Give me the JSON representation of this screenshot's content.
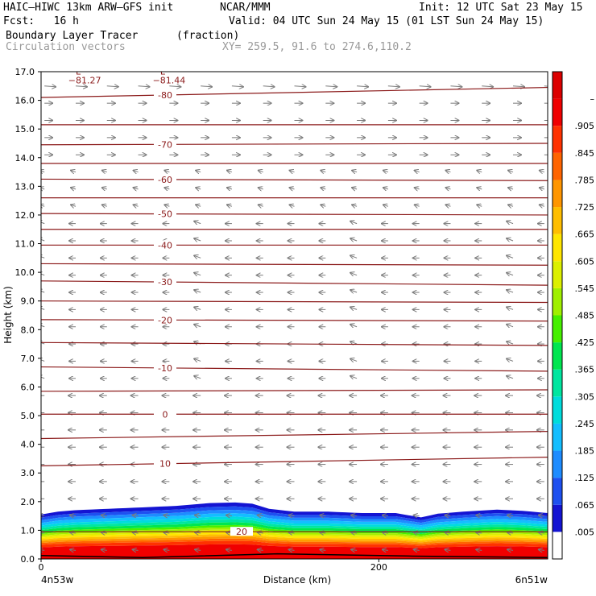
{
  "header": {
    "model": "HAIC–HIWC 13km ARW–GFS init",
    "org": "NCAR/MMM",
    "init": "Init: 12 UTC Sat 23 May 15",
    "fcst": "Fcst:   16 h",
    "valid": "Valid: 04 UTC Sun 24 May 15 (01 LST Sun 24 May 15)",
    "field": "Boundary Layer Tracer",
    "field_units": "(fraction)",
    "vectors_label": "Circulation vectors",
    "xy_label": "XY= 259.5, 91.6 to 274.6,110.2"
  },
  "colors": {
    "contour": "#8b1a1a",
    "vector": "#7a7a7a",
    "axis": "#000000"
  },
  "chart_data": {
    "type": "heatmap",
    "xlabel": "Distance (km)",
    "ylabel": "Height (km)",
    "xlim": [
      0,
      300
    ],
    "ylim": [
      0,
      17
    ],
    "x_ticks": [
      {
        "value": 0,
        "label": "0"
      },
      {
        "value": 200,
        "label": "200"
      }
    ],
    "x_endpoints": {
      "left": "4n53w",
      "right": "6n51w"
    },
    "y_ticks": [
      0.0,
      1.0,
      2.0,
      3.0,
      4.0,
      5.0,
      6.0,
      7.0,
      8.0,
      9.0,
      10.0,
      11.0,
      12.0,
      13.0,
      14.0,
      15.0,
      16.0,
      17.0
    ],
    "y_tick_labels": [
      "0.0",
      "1.0",
      "2.0",
      "3.0",
      "4.0",
      "5.0",
      "6.0",
      "7.0",
      "8.0",
      "9.0",
      "10.0",
      "11.0",
      "12.0",
      "13.0",
      "14.0",
      "15.0",
      "16.0",
      "17.0"
    ],
    "colorbar": {
      "labels": [
        ".005",
        ".065",
        ".125",
        ".185",
        ".245",
        ".305",
        ".365",
        ".425",
        ".485",
        ".545",
        ".605",
        ".665",
        ".725",
        ".785",
        ".845",
        ".905",
        "–"
      ],
      "colors": [
        "#ffffff",
        "#1414d2",
        "#1e50f0",
        "#1e8cff",
        "#14beff",
        "#00dcdc",
        "#00e6a0",
        "#00e650",
        "#46f000",
        "#a0f000",
        "#dcf000",
        "#ffe600",
        "#ffbe00",
        "#ff9600",
        "#ff6400",
        "#ff3200",
        "#f00000",
        "#dc0000"
      ]
    },
    "boundary_layer": {
      "x": [
        0,
        10,
        20,
        40,
        60,
        80,
        100,
        115,
        125,
        135,
        150,
        170,
        190,
        210,
        225,
        235,
        250,
        270,
        285,
        300
      ],
      "top": [
        1.55,
        1.65,
        1.7,
        1.75,
        1.8,
        1.85,
        1.95,
        1.97,
        1.93,
        1.75,
        1.65,
        1.65,
        1.6,
        1.6,
        1.45,
        1.58,
        1.65,
        1.72,
        1.68,
        1.6
      ]
    },
    "temperature_contours": [
      {
        "label": "20",
        "y_left": 0.95,
        "y_right": 0.95
      },
      {
        "label": "10",
        "y_left": 3.25,
        "y_right": 3.55
      },
      {
        "label": "",
        "y_left": 4.2,
        "y_right": 4.45
      },
      {
        "label": "0",
        "y_left": 5.05,
        "y_right": 5.05
      },
      {
        "label": "",
        "y_left": 5.85,
        "y_right": 5.9
      },
      {
        "label": "-10",
        "y_left": 6.7,
        "y_right": 6.55
      },
      {
        "label": "",
        "y_left": 7.55,
        "y_right": 7.45
      },
      {
        "label": "-20",
        "y_left": 8.35,
        "y_right": 8.3
      },
      {
        "label": "",
        "y_left": 9.0,
        "y_right": 8.95
      },
      {
        "label": "-30",
        "y_left": 9.7,
        "y_right": 9.55
      },
      {
        "label": "",
        "y_left": 10.3,
        "y_right": 10.25
      },
      {
        "label": "-40",
        "y_left": 10.95,
        "y_right": 10.95
      },
      {
        "label": "",
        "y_left": 11.5,
        "y_right": 11.5
      },
      {
        "label": "-50",
        "y_left": 12.05,
        "y_right": 12.0
      },
      {
        "label": "",
        "y_left": 12.6,
        "y_right": 12.6
      },
      {
        "label": "-60",
        "y_left": 13.25,
        "y_right": 13.2
      },
      {
        "label": "",
        "y_left": 13.8,
        "y_right": 13.8
      },
      {
        "label": "-70",
        "y_left": 14.45,
        "y_right": 14.5
      },
      {
        "label": "",
        "y_left": 15.15,
        "y_right": 15.15
      },
      {
        "label": "-80",
        "y_left": 16.1,
        "y_right": 16.45
      }
    ],
    "lows": [
      {
        "symbol": "L",
        "value": "−81.27",
        "x": 22,
        "y": 16.9
      },
      {
        "symbol": "L",
        "value": "−81.44",
        "x": 72,
        "y": 16.9
      }
    ]
  }
}
